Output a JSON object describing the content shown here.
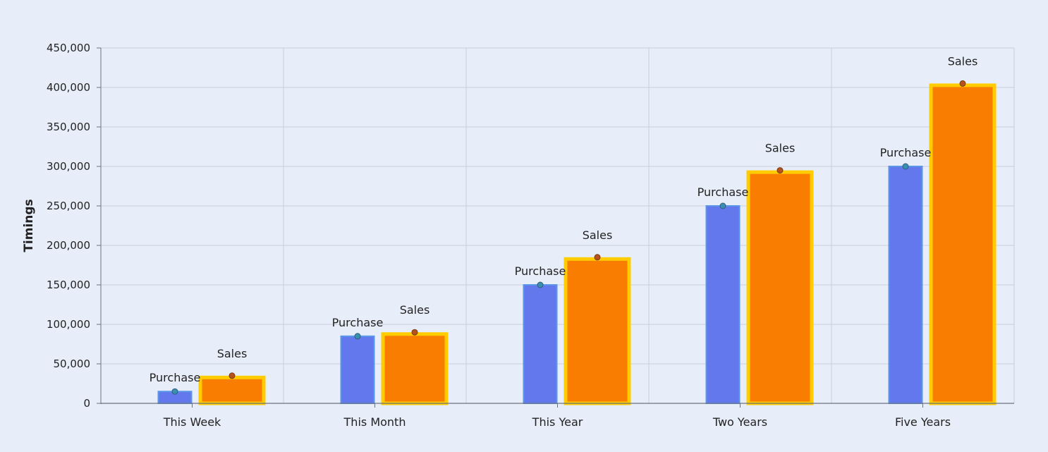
{
  "chart_data": {
    "type": "bar",
    "title": "",
    "xlabel": "",
    "ylabel": "Timings",
    "ylim": [
      0,
      450000
    ],
    "yticks": [
      0,
      50000,
      100000,
      150000,
      200000,
      250000,
      300000,
      350000,
      400000,
      450000
    ],
    "ytick_labels": [
      "0",
      "50,000",
      "100,000",
      "150,000",
      "200,000",
      "250,000",
      "300,000",
      "350,000",
      "400,000",
      "450,000"
    ],
    "categories": [
      "This Week",
      "This Month",
      "This Year",
      "Two Years",
      "Five Years"
    ],
    "series": [
      {
        "name": "Purchase",
        "values": [
          15000,
          85000,
          150000,
          250000,
          300000
        ],
        "color": "#6478ee",
        "border": "#5a95e8",
        "marker": "#3a8fb0"
      },
      {
        "name": "Sales",
        "values": [
          35000,
          90000,
          185000,
          295000,
          405000
        ],
        "color": "#f97d00",
        "border": "#ffcc00",
        "marker": "#b8521c"
      }
    ],
    "grid": true,
    "legend": "none",
    "data_labels": "series name"
  },
  "colors": {
    "background": "#e8eef9",
    "grid": "#c8cfdc",
    "axis": "#6b7280"
  }
}
